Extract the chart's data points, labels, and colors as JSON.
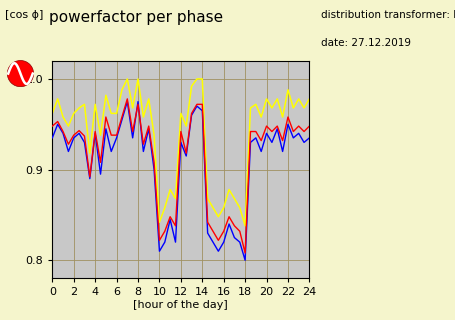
{
  "title": "powerfactor per phase",
  "top_left_label": "[cos ϕ]",
  "xlabel": "[hour of the day]",
  "annotation_line1": "distribution transformer: DT35",
  "annotation_line2": "date: 27.12.2019",
  "xlim": [
    0,
    24
  ],
  "ylim": [
    0.78,
    1.02
  ],
  "yticks": [
    0.8,
    0.9,
    1
  ],
  "xticks": [
    0,
    2,
    4,
    6,
    8,
    10,
    12,
    14,
    16,
    18,
    20,
    22,
    24
  ],
  "bg_color": "#c8c8c8",
  "fig_bg_color": "#f5f5cc",
  "grid_color": "#a09060",
  "x": [
    0.0,
    0.5,
    1.0,
    1.5,
    2.0,
    2.5,
    3.0,
    3.5,
    4.0,
    4.5,
    5.0,
    5.5,
    6.0,
    6.5,
    7.0,
    7.5,
    8.0,
    8.5,
    9.0,
    9.5,
    10.0,
    10.5,
    11.0,
    11.5,
    12.0,
    12.5,
    13.0,
    13.5,
    14.0,
    14.5,
    15.0,
    15.5,
    16.0,
    16.5,
    17.0,
    17.5,
    18.0,
    18.5,
    19.0,
    19.5,
    20.0,
    20.5,
    21.0,
    21.5,
    22.0,
    22.5,
    23.0,
    23.5,
    24.0
  ],
  "p_blue": [
    0.935,
    0.95,
    0.94,
    0.92,
    0.935,
    0.94,
    0.93,
    0.89,
    0.94,
    0.895,
    0.945,
    0.92,
    0.935,
    0.955,
    0.975,
    0.935,
    0.975,
    0.92,
    0.945,
    0.9,
    0.81,
    0.82,
    0.845,
    0.82,
    0.93,
    0.915,
    0.96,
    0.97,
    0.965,
    0.83,
    0.82,
    0.81,
    0.82,
    0.84,
    0.825,
    0.82,
    0.8,
    0.93,
    0.935,
    0.92,
    0.94,
    0.93,
    0.945,
    0.92,
    0.95,
    0.935,
    0.94,
    0.93,
    0.935
  ],
  "p_red": [
    0.948,
    0.953,
    0.942,
    0.928,
    0.938,
    0.943,
    0.937,
    0.892,
    0.942,
    0.908,
    0.958,
    0.938,
    0.938,
    0.958,
    0.978,
    0.942,
    0.972,
    0.928,
    0.948,
    0.908,
    0.822,
    0.832,
    0.848,
    0.838,
    0.942,
    0.918,
    0.962,
    0.972,
    0.972,
    0.842,
    0.832,
    0.822,
    0.832,
    0.848,
    0.838,
    0.832,
    0.808,
    0.942,
    0.942,
    0.932,
    0.948,
    0.942,
    0.948,
    0.932,
    0.958,
    0.942,
    0.948,
    0.942,
    0.948
  ],
  "p_yel": [
    0.962,
    0.978,
    0.958,
    0.948,
    0.962,
    0.968,
    0.972,
    0.918,
    0.972,
    0.938,
    0.982,
    0.962,
    0.962,
    0.988,
    1.0,
    0.968,
    1.0,
    0.958,
    0.978,
    0.938,
    0.842,
    0.858,
    0.878,
    0.868,
    0.962,
    0.948,
    0.992,
    1.0,
    1.0,
    0.868,
    0.858,
    0.848,
    0.858,
    0.878,
    0.868,
    0.858,
    0.838,
    0.968,
    0.972,
    0.958,
    0.978,
    0.968,
    0.978,
    0.958,
    0.988,
    0.968,
    0.978,
    0.968,
    0.978
  ]
}
